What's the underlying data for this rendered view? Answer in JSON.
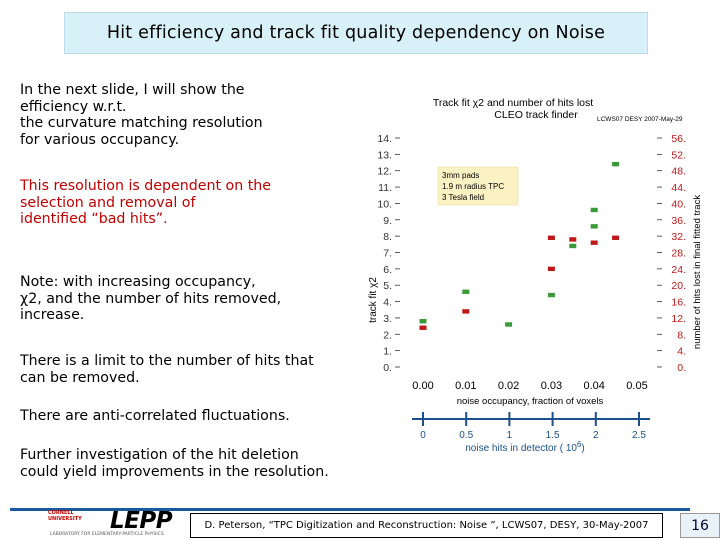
{
  "slide": {
    "title": "Hit efficiency and track fit quality dependency on Noise",
    "para1": "In the next slide, I will show the\nefficiency w.r.t.\nthe curvature matching resolution\nfor various occupancy.",
    "para2": "This resolution is dependent on the\nselection and removal of\nidentified “bad hits”.",
    "para3": "Note: with increasing occupancy,\nχ2, and the number of hits removed,\nincrease.",
    "para4": "There is a limit to the number of hits that\ncan be removed.",
    "para5": "There are anti-correlated fluctuations.",
    "para6": "Further investigation of the hit deletion\ncould yield improvements in the resolution.",
    "footer_text": "D. Peterson, “TPC Digitization and Reconstruction: Noise ”, LCWS07, DESY, 30-May-2007",
    "page_number": "16",
    "logo_text": "LEPP",
    "logo_org": "CORNELL\nUNIVERSITY",
    "logo_sub": "LABORATORY FOR ELEMENTARY-PARTICLE PHYSICS"
  },
  "chart_data": {
    "type": "scatter",
    "title_line1": "Track fit χ2 and number of hits lost",
    "title_line2": "CLEO track finder",
    "stamp": "LCWS07 DESY 2007-May-29",
    "annotation": [
      "3mm pads",
      "1.9 m radius TPC",
      "3 Tesla field"
    ],
    "xlabel": "noise occupancy, fraction of voxels",
    "ylabel_left": "track fit χ2",
    "ylabel_right": "number of hits lost in final fitted track",
    "x_ticks": [
      "0.00",
      "0.01",
      "0.02",
      "0.03",
      "0.04",
      "0.05"
    ],
    "xlim": [
      0,
      0.05
    ],
    "left_ticks": [
      "0.",
      "1.",
      "2.",
      "3.",
      "4.",
      "5.",
      "6.",
      "7.",
      "8.",
      "9.",
      "10.",
      "11.",
      "12.",
      "13.",
      "14."
    ],
    "left_ylim": [
      0,
      14
    ],
    "right_ticks": [
      "0.",
      "4.",
      "8.",
      "12.",
      "16.",
      "20.",
      "24.",
      "28.",
      "32.",
      "36.",
      "40.",
      "44.",
      "48.",
      "52.",
      "56."
    ],
    "right_ylim": [
      0,
      56
    ],
    "series": [
      {
        "name": "track fit χ2",
        "color": "#3a9a3a",
        "axis": "left",
        "x": [
          0.0,
          0.01,
          0.02,
          0.03,
          0.035,
          0.04,
          0.045
        ],
        "y": [
          2.8,
          4.6,
          2.6,
          4.4,
          7.4,
          8.6,
          12.4
        ]
      },
      {
        "name": "hits lost",
        "color": "#c01818",
        "axis": "right",
        "x": [
          0.0,
          0.01,
          0.03,
          0.035,
          0.04,
          0.045
        ],
        "y": [
          9.6,
          13.6,
          24.0,
          31.2,
          30.4,
          31.6
        ]
      },
      {
        "name": "track fit χ2 (upper)",
        "color": "#3a9a3a",
        "axis": "left",
        "x": [
          0.04
        ],
        "y": [
          9.6
        ]
      },
      {
        "name": "hits lost (upper)",
        "color": "#c01818",
        "axis": "right",
        "x": [
          0.03
        ],
        "y": [
          31.6
        ]
      }
    ],
    "noise_axis": {
      "label": "noise hits in detector ( 10",
      "label_exp": "6",
      "label_end": ")",
      "ticks": [
        "0",
        "0.5",
        "1",
        "1.5",
        "2",
        "2.5"
      ],
      "range": [
        0,
        2.5
      ]
    }
  }
}
